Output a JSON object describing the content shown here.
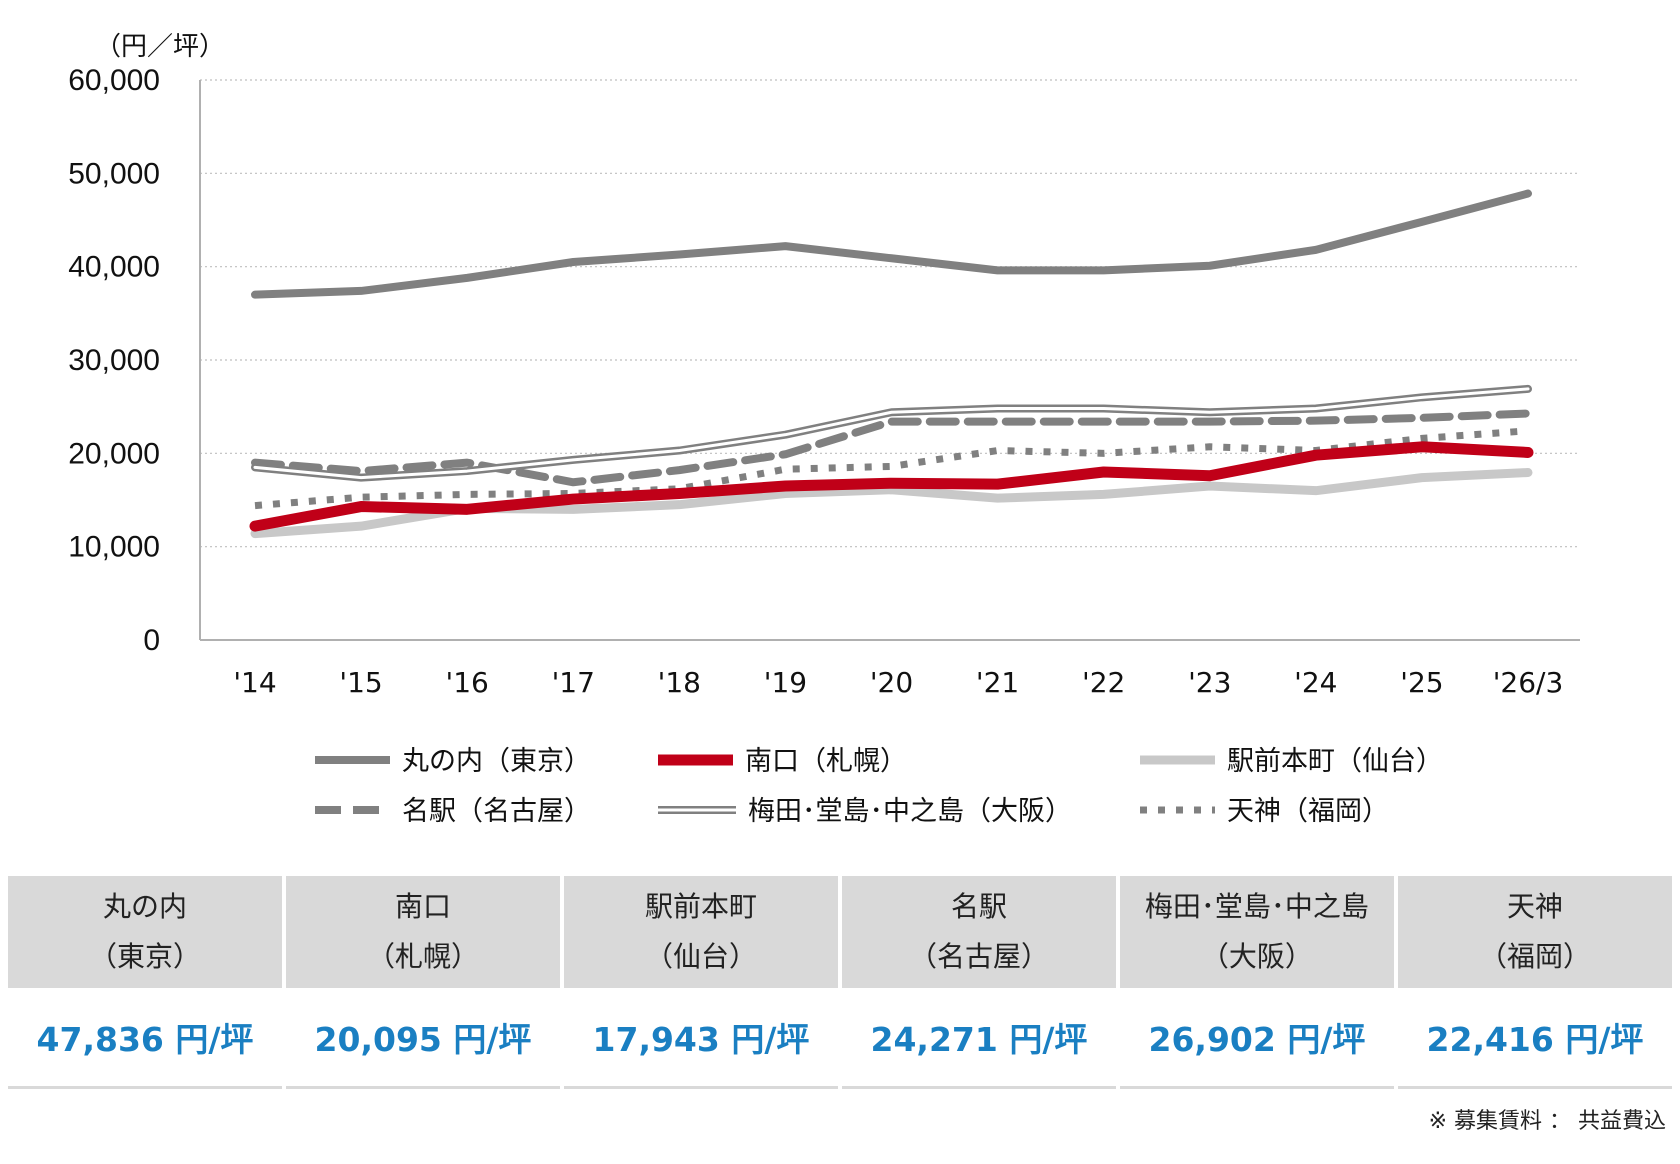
{
  "chart_data": {
    "type": "line",
    "unit_label": "（円／坪）",
    "categories": [
      "'14",
      "'15",
      "'16",
      "'17",
      "'18",
      "'19",
      "'20",
      "'21",
      "'22",
      "'23",
      "'24",
      "'25",
      "'26/3"
    ],
    "ylim": [
      0,
      60000
    ],
    "yticks": [
      0,
      10000,
      20000,
      30000,
      40000,
      50000,
      60000
    ],
    "ytick_labels": [
      "0",
      "10,000",
      "20,000",
      "30,000",
      "40,000",
      "50,000",
      "60,000"
    ],
    "grid": true,
    "series": [
      {
        "name": "丸の内（東京）",
        "style": "solid-thick",
        "color": "#808080",
        "values": [
          37000,
          37400,
          38800,
          40500,
          41300,
          42200,
          40900,
          39600,
          39600,
          40100,
          41800,
          44800,
          47836
        ]
      },
      {
        "name": "南口（札幌）",
        "style": "solid-bold",
        "color": "#c00018",
        "values": [
          12200,
          14300,
          14000,
          15100,
          15700,
          16500,
          16800,
          16700,
          18000,
          17600,
          19800,
          20700,
          20095
        ]
      },
      {
        "name": "駅前本町（仙台）",
        "style": "solid-light",
        "color": "#c8c8c8",
        "values": [
          11400,
          12200,
          14100,
          14000,
          14500,
          15700,
          16100,
          15200,
          15600,
          16500,
          16000,
          17400,
          17943
        ]
      },
      {
        "name": "名駅（名古屋）",
        "style": "dashed",
        "color": "#808080",
        "values": [
          19000,
          18100,
          19000,
          16900,
          18200,
          19900,
          23400,
          23400,
          23400,
          23400,
          23500,
          23800,
          24271
        ]
      },
      {
        "name": "梅田･堂島･中之島（大阪）",
        "style": "double",
        "color": "#808080",
        "values": [
          18500,
          17400,
          18100,
          19300,
          20300,
          22000,
          24400,
          24800,
          24800,
          24400,
          24800,
          26000,
          26902
        ]
      },
      {
        "name": "天神（福岡）",
        "style": "dotted",
        "color": "#808080",
        "values": [
          14400,
          15300,
          15600,
          15700,
          16200,
          18300,
          18600,
          20300,
          20000,
          20700,
          20300,
          21600,
          22416
        ]
      }
    ]
  },
  "table": {
    "columns": [
      {
        "name": "丸の内",
        "area": "（東京）",
        "value": "47,836 円/坪"
      },
      {
        "name": "南口",
        "area": "（札幌）",
        "value": "20,095 円/坪"
      },
      {
        "name": "駅前本町",
        "area": "（仙台）",
        "value": "17,943 円/坪"
      },
      {
        "name": "名駅",
        "area": "（名古屋）",
        "value": "24,271 円/坪"
      },
      {
        "name": "梅田･堂島･中之島",
        "area": "（大阪）",
        "value": "26,902 円/坪"
      },
      {
        "name": "天神",
        "area": "（福岡）",
        "value": "22,416 円/坪"
      }
    ]
  },
  "note": "※ 募集賃料 ： 共益費込"
}
